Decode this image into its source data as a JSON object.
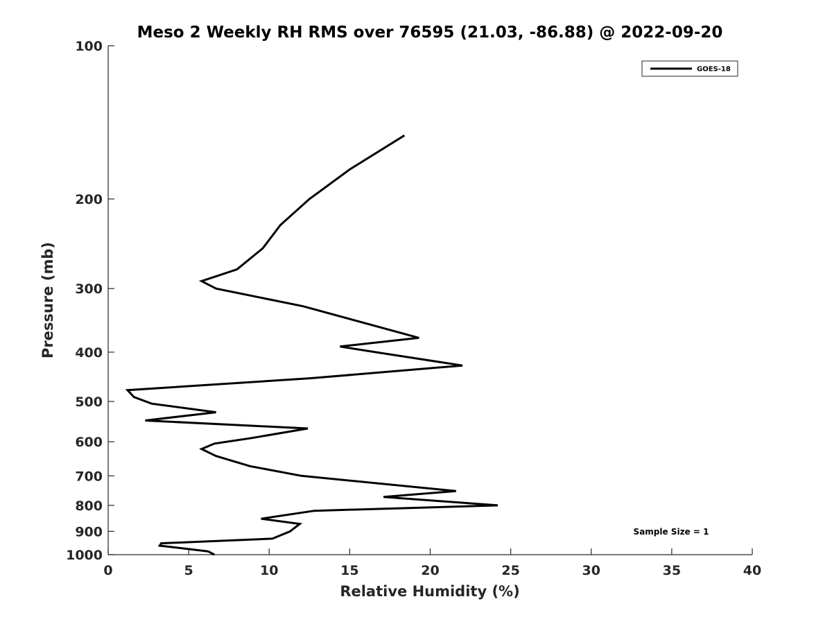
{
  "chart_data": {
    "type": "line",
    "title": "Meso 2 Weekly RH RMS over 76595 (21.03, -86.88) @ 2022-09-20",
    "xlabel": "Relative Humidity (%)",
    "ylabel": "Pressure (mb)",
    "xlim": [
      0,
      40
    ],
    "ylim": [
      100,
      1000
    ],
    "yscale": "log",
    "y_reversed": true,
    "xticks": [
      0,
      5,
      10,
      15,
      20,
      25,
      30,
      35,
      40
    ],
    "yticks": [
      100,
      200,
      300,
      400,
      500,
      600,
      700,
      800,
      900,
      1000
    ],
    "grid": false,
    "legend_position": "top-right",
    "annotation": "Sample Size = 1",
    "series": [
      {
        "name": "GOES-18",
        "color": "#000000",
        "x": [
          18.4,
          15.0,
          12.5,
          10.7,
          9.6,
          8.0,
          5.8,
          6.7,
          12.1,
          19.3,
          14.4,
          16.6,
          22.0,
          12.6,
          1.2,
          1.6,
          2.7,
          6.7,
          2.3,
          12.4,
          8.9,
          6.6,
          5.8,
          6.7,
          8.8,
          12.0,
          21.6,
          17.1,
          24.2,
          12.8,
          9.5,
          11.9,
          11.3,
          10.2,
          3.3,
          3.2,
          6.2,
          6.6
        ],
        "y": [
          150,
          175,
          200,
          225,
          250,
          275,
          290,
          300,
          325,
          375,
          390,
          400,
          425,
          450,
          475,
          490,
          505,
          525,
          545,
          565,
          590,
          605,
          620,
          640,
          670,
          700,
          750,
          770,
          800,
          820,
          850,
          870,
          900,
          930,
          950,
          960,
          985,
          1000
        ]
      }
    ]
  }
}
